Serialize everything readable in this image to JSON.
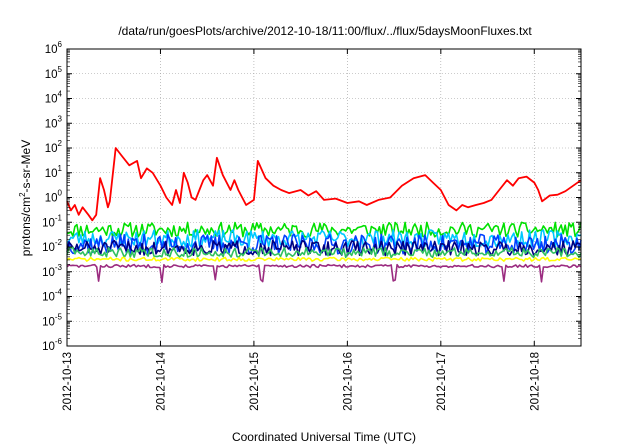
{
  "chart_data": {
    "type": "line",
    "title": "/data/run/goesPlots/archive/2012-10-18/11:00/flux/../flux/5daysMoonFluxes.txt",
    "xlabel": "Coordinated Universal Time (UTC)",
    "ylabel": {
      "pre": "protons/cm",
      "sup": "2",
      "post": "-s-sr-MeV"
    },
    "y_scale": "log",
    "ylim": [
      1e-06,
      1000000.0
    ],
    "xlim": [
      "2012-10-13T00:00",
      "2012-10-18T12:00"
    ],
    "x_ticks": [
      "2012-10-13",
      "2012-10-14",
      "2012-10-15",
      "2012-10-16",
      "2012-10-17",
      "2012-10-18"
    ],
    "y_ticks": [
      {
        "base": "10",
        "exp": "-6"
      },
      {
        "base": "10",
        "exp": "-5"
      },
      {
        "base": "10",
        "exp": "-4"
      },
      {
        "base": "10",
        "exp": "-3"
      },
      {
        "base": "10",
        "exp": "-2"
      },
      {
        "base": "10",
        "exp": "-1"
      },
      {
        "base": "10",
        "exp": "0"
      },
      {
        "base": "10",
        "exp": "1"
      },
      {
        "base": "10",
        "exp": "2"
      },
      {
        "base": "10",
        "exp": "3"
      },
      {
        "base": "10",
        "exp": "4"
      },
      {
        "base": "10",
        "exp": "5"
      },
      {
        "base": "10",
        "exp": "6"
      }
    ],
    "grid": true,
    "legend": "none",
    "series": [
      {
        "color": "#ff0000",
        "points": [
          [
            "2012-10-13T00:00",
            0.7
          ],
          [
            "2012-10-13T01:00",
            0.3
          ],
          [
            "2012-10-13T02:00",
            0.5
          ],
          [
            "2012-10-13T03:00",
            0.2
          ],
          [
            "2012-10-13T04:00",
            0.4
          ],
          [
            "2012-10-13T05:30",
            0.2
          ],
          [
            "2012-10-13T06:30",
            0.12
          ],
          [
            "2012-10-13T07:30",
            0.2
          ],
          [
            "2012-10-13T08:30",
            6
          ],
          [
            "2012-10-13T09:30",
            2
          ],
          [
            "2012-10-13T10:30",
            0.4
          ],
          [
            "2012-10-13T11:00",
            0.7
          ],
          [
            "2012-10-13T12:30",
            100
          ],
          [
            "2012-10-13T14:00",
            50
          ],
          [
            "2012-10-13T16:00",
            20
          ],
          [
            "2012-10-13T18:00",
            30
          ],
          [
            "2012-10-13T19:00",
            6
          ],
          [
            "2012-10-13T20:30",
            15
          ],
          [
            "2012-10-13T22:00",
            10
          ],
          [
            "2012-10-14T00:00",
            3
          ],
          [
            "2012-10-14T01:30",
            1
          ],
          [
            "2012-10-14T03:00",
            0.5
          ],
          [
            "2012-10-14T04:00",
            2
          ],
          [
            "2012-10-14T05:00",
            0.6
          ],
          [
            "2012-10-14T06:00",
            10
          ],
          [
            "2012-10-14T07:00",
            4
          ],
          [
            "2012-10-14T08:00",
            1
          ],
          [
            "2012-10-14T09:00",
            0.8
          ],
          [
            "2012-10-14T10:00",
            2
          ],
          [
            "2012-10-14T11:00",
            5
          ],
          [
            "2012-10-14T12:00",
            8
          ],
          [
            "2012-10-14T13:30",
            3
          ],
          [
            "2012-10-14T14:30",
            40
          ],
          [
            "2012-10-14T16:00",
            8
          ],
          [
            "2012-10-14T18:00",
            2
          ],
          [
            "2012-10-14T19:00",
            5
          ],
          [
            "2012-10-14T20:00",
            2
          ],
          [
            "2012-10-14T21:00",
            1
          ],
          [
            "2012-10-14T22:00",
            0.5
          ],
          [
            "2012-10-15T00:00",
            0.8
          ],
          [
            "2012-10-15T01:00",
            30
          ],
          [
            "2012-10-15T03:00",
            6
          ],
          [
            "2012-10-15T05:00",
            3
          ],
          [
            "2012-10-15T07:00",
            2
          ],
          [
            "2012-10-15T09:00",
            1.5
          ],
          [
            "2012-10-15T12:00",
            2
          ],
          [
            "2012-10-15T14:00",
            1.2
          ],
          [
            "2012-10-15T16:00",
            1.8
          ],
          [
            "2012-10-15T18:00",
            0.8
          ],
          [
            "2012-10-15T21:00",
            0.9
          ],
          [
            "2012-10-16T00:00",
            0.6
          ],
          [
            "2012-10-16T03:00",
            0.7
          ],
          [
            "2012-10-16T05:00",
            0.5
          ],
          [
            "2012-10-16T08:00",
            0.8
          ],
          [
            "2012-10-16T11:00",
            1
          ],
          [
            "2012-10-16T14:00",
            3
          ],
          [
            "2012-10-16T17:00",
            6
          ],
          [
            "2012-10-16T20:00",
            8
          ],
          [
            "2012-10-16T22:00",
            4
          ],
          [
            "2012-10-17T00:00",
            2
          ],
          [
            "2012-10-17T02:00",
            0.5
          ],
          [
            "2012-10-17T04:00",
            0.3
          ],
          [
            "2012-10-17T05:30",
            0.5
          ],
          [
            "2012-10-17T07:00",
            0.4
          ],
          [
            "2012-10-17T09:00",
            0.5
          ],
          [
            "2012-10-17T11:00",
            0.6
          ],
          [
            "2012-10-17T13:00",
            0.8
          ],
          [
            "2012-10-17T15:00",
            2
          ],
          [
            "2012-10-17T17:00",
            5
          ],
          [
            "2012-10-17T18:30",
            3
          ],
          [
            "2012-10-17T20:00",
            6
          ],
          [
            "2012-10-17T22:00",
            7
          ],
          [
            "2012-10-18T00:00",
            4
          ],
          [
            "2012-10-18T01:00",
            2
          ],
          [
            "2012-10-18T02:00",
            0.7
          ],
          [
            "2012-10-18T04:00",
            1.2
          ],
          [
            "2012-10-18T06:00",
            1.3
          ],
          [
            "2012-10-18T08:00",
            1.8
          ],
          [
            "2012-10-18T10:00",
            3
          ],
          [
            "2012-10-18T12:00",
            5
          ]
        ]
      },
      {
        "color": "#00e000",
        "center": 0.05,
        "amplitude": 0.6,
        "seed": 11
      },
      {
        "color": "#00c8ff",
        "center": 0.022,
        "amplitude": 0.7,
        "seed": 23
      },
      {
        "color": "#0040ff",
        "center": 0.013,
        "amplitude": 0.8,
        "seed": 37
      },
      {
        "color": "#000080",
        "center": 0.009,
        "amplitude": 0.6,
        "seed": 51
      },
      {
        "color": "#30c060",
        "center": 0.006,
        "amplitude": 0.4,
        "seed": 63
      },
      {
        "color": "#ffff00",
        "center": 0.0032,
        "amplitude": 0.15,
        "seed": 71
      },
      {
        "color": "#9b2c80",
        "center": 0.0017,
        "amplitude": 0.12,
        "seed": 83,
        "dips": [
          "2012-10-13T08:00",
          "2012-10-14T00:30",
          "2012-10-14T14:00",
          "2012-10-15T02:00",
          "2012-10-16T12:00",
          "2012-10-17T16:00",
          "2012-10-18T02:00"
        ]
      }
    ]
  }
}
